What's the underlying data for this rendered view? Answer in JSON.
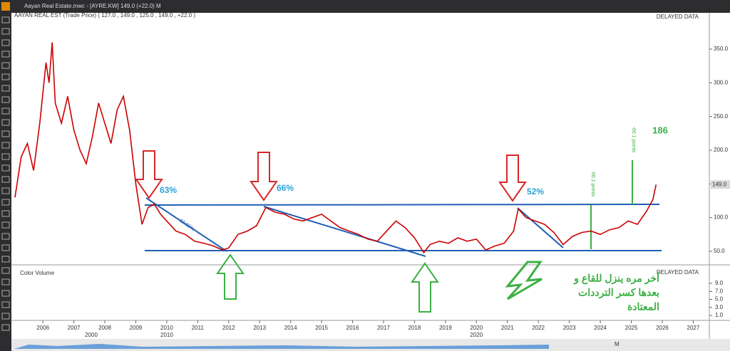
{
  "chart_data": {
    "type": "line",
    "window_title": "Aayan Real Estate.mwc - [AYRE.KW] 149.0 (+22.0) M",
    "legend_text": "AAYAN REAL EST (Trade Price) ( 127.0 , 149.0 , 125.0 , 149.0 , +22.0 )",
    "status": "DELAYED DATA",
    "color": "#cc0000",
    "x": [
      2005.1,
      2005.3,
      2005.5,
      2005.7,
      2005.9,
      2006.1,
      2006.2,
      2006.3,
      2006.4,
      2006.6,
      2006.8,
      2007.0,
      2007.2,
      2007.4,
      2007.6,
      2007.8,
      2008.0,
      2008.2,
      2008.4,
      2008.6,
      2008.8,
      2009.0,
      2009.2,
      2009.4,
      2009.6,
      2009.8,
      2010.0,
      2010.3,
      2010.6,
      2010.9,
      2011.2,
      2011.5,
      2011.8,
      2012.0,
      2012.3,
      2012.6,
      2012.9,
      2013.2,
      2013.5,
      2013.8,
      2014.1,
      2014.4,
      2014.7,
      2015.0,
      2015.3,
      2015.6,
      2015.9,
      2016.2,
      2016.5,
      2016.8,
      2017.1,
      2017.4,
      2017.7,
      2018.0,
      2018.3,
      2018.5,
      2018.8,
      2019.1,
      2019.4,
      2019.7,
      2020.0,
      2020.3,
      2020.6,
      2020.9,
      2021.2,
      2021.35,
      2021.6,
      2021.9,
      2022.2,
      2022.5,
      2022.8,
      2023.1,
      2023.4,
      2023.7,
      2024.0,
      2024.3,
      2024.6,
      2024.9,
      2025.2,
      2025.5,
      2025.7,
      2025.8
    ],
    "values": [
      130,
      190,
      210,
      170,
      240,
      330,
      300,
      360,
      270,
      240,
      280,
      230,
      200,
      180,
      220,
      270,
      240,
      210,
      260,
      280,
      230,
      150,
      90,
      115,
      120,
      105,
      95,
      80,
      75,
      65,
      62,
      58,
      52,
      55,
      75,
      80,
      88,
      115,
      108,
      105,
      98,
      95,
      100,
      105,
      95,
      85,
      80,
      75,
      68,
      65,
      80,
      95,
      85,
      70,
      48,
      60,
      65,
      62,
      70,
      65,
      68,
      52,
      58,
      62,
      80,
      113,
      100,
      95,
      90,
      78,
      60,
      72,
      78,
      80,
      75,
      82,
      85,
      95,
      90,
      110,
      127,
      149
    ],
    "last_price": {
      "value": 149,
      "label": "149.0"
    },
    "xlim": [
      2005.03,
      2027.52
    ],
    "xticks": [
      2006,
      2007,
      2008,
      2009,
      2010,
      2011,
      2012,
      2013,
      2014,
      2015,
      2016,
      2017,
      2018,
      2019,
      2020,
      2021,
      2022,
      2023,
      2024,
      2025,
      2026,
      2027
    ],
    "decades": [
      {
        "value": 2000,
        "label": "2000"
      },
      {
        "value": 2010,
        "label": "2010"
      },
      {
        "value": 2020,
        "label": "2020"
      }
    ],
    "ylim": [
      32,
      391.2
    ],
    "yticks": [
      {
        "value": 50,
        "label": "50.0"
      },
      {
        "value": 100,
        "label": "100.0"
      },
      {
        "value": 150,
        "label": "150.0"
      },
      {
        "value": 200,
        "label": "200.0"
      },
      {
        "value": 250,
        "label": "250.0"
      },
      {
        "value": 300,
        "label": "300.0"
      },
      {
        "value": 350,
        "label": "350.0"
      }
    ],
    "volume": {
      "title": "Color Volume",
      "ylim": [
        0.11,
        12.2
      ],
      "yticks": [
        {
          "value": 9,
          "label": "9.0"
        },
        {
          "value": 7,
          "label": "7.0"
        },
        {
          "value": 5,
          "label": "5.0"
        },
        {
          "value": 3,
          "label": "3.0"
        },
        {
          "value": 1,
          "label": "1.0"
        }
      ]
    },
    "annotations": [
      "63%",
      "66%",
      "52%",
      "62.86%",
      "-66.1 points",
      "-66.1 points",
      "186"
    ],
    "arabic_note": [
      "أخر مره ينزل للقاع و",
      "بعدها كسر الترددات",
      "المعتادة"
    ],
    "period": "M"
  }
}
